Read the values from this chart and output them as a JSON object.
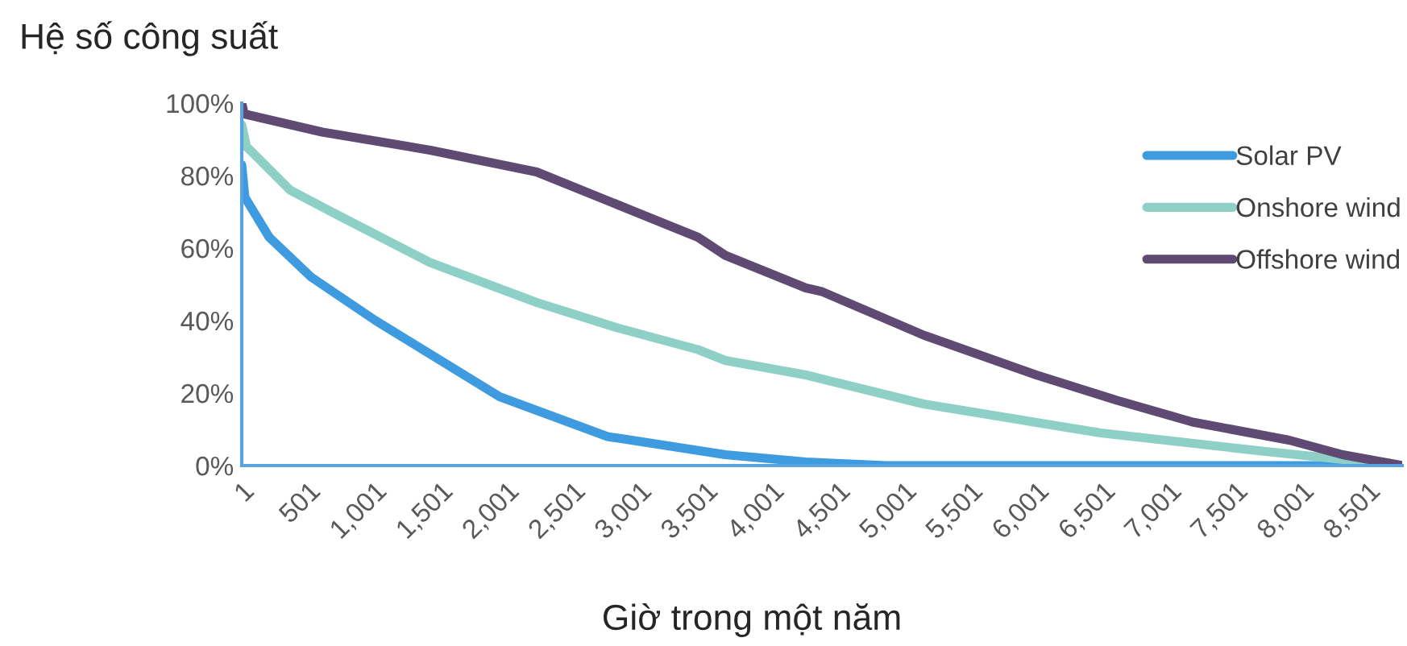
{
  "chart_data": {
    "type": "line",
    "ylabel": "Hệ số công suất",
    "xlabel": "Giờ trong một năm",
    "xlim": [
      1,
      8760
    ],
    "xticks": [
      {
        "value": 1,
        "label": "1"
      },
      {
        "value": 501,
        "label": "501"
      },
      {
        "value": 1001,
        "label": "1,001"
      },
      {
        "value": 1501,
        "label": "1,501"
      },
      {
        "value": 2001,
        "label": "2,001"
      },
      {
        "value": 2501,
        "label": "2,501"
      },
      {
        "value": 3001,
        "label": "3,001"
      },
      {
        "value": 3501,
        "label": "3,501"
      },
      {
        "value": 4001,
        "label": "4,001"
      },
      {
        "value": 4501,
        "label": "4,501"
      },
      {
        "value": 5001,
        "label": "5,001"
      },
      {
        "value": 5501,
        "label": "5,501"
      },
      {
        "value": 6001,
        "label": "6,001"
      },
      {
        "value": 6501,
        "label": "6,501"
      },
      {
        "value": 7001,
        "label": "7,001"
      },
      {
        "value": 7501,
        "label": "7,501"
      },
      {
        "value": 8001,
        "label": "8,001"
      },
      {
        "value": 8501,
        "label": "8,501"
      }
    ],
    "ylim": [
      0,
      100
    ],
    "yticks": [
      {
        "value": 0,
        "label": "0%"
      },
      {
        "value": 20,
        "label": "20%"
      },
      {
        "value": 40,
        "label": "40%"
      },
      {
        "value": 60,
        "label": "60%"
      },
      {
        "value": 80,
        "label": "80%"
      },
      {
        "value": 100,
        "label": "100%"
      }
    ],
    "grid": false,
    "legend": "top right",
    "marker": "none",
    "line_style": "solid",
    "series": [
      {
        "name": "Solar PV",
        "color": "#3f9be0",
        "x": [
          1,
          25,
          208,
          525,
          1011,
          1546,
          1947,
          2762,
          3651,
          4259,
          4867,
          8760
        ],
        "values": [
          83,
          74,
          63,
          52,
          40,
          28,
          19,
          8,
          3,
          1,
          0,
          0
        ]
      },
      {
        "name": "Onshore wind",
        "color": "#8ecfc6",
        "x": [
          1,
          37,
          366,
          731,
          1424,
          2227,
          2836,
          3444,
          3651,
          4259,
          5147,
          6485,
          7701,
          8760
        ],
        "values": [
          94,
          88,
          76,
          69,
          56,
          45,
          38,
          32,
          29,
          25,
          17,
          9,
          4,
          0
        ]
      },
      {
        "name": "Offshore wind",
        "color": "#5f4a73",
        "x": [
          1,
          20,
          609,
          1424,
          2227,
          2836,
          3444,
          3651,
          4259,
          4380,
          5147,
          5998,
          6607,
          7178,
          7908,
          8310,
          8760
        ],
        "values": [
          100,
          97,
          92,
          87,
          81,
          72,
          63,
          58,
          49,
          48,
          36,
          25,
          18,
          12,
          7,
          3,
          0
        ]
      }
    ]
  }
}
